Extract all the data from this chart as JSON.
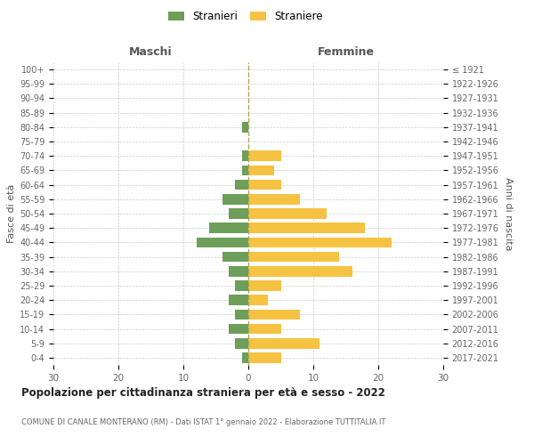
{
  "age_groups": [
    "0-4",
    "5-9",
    "10-14",
    "15-19",
    "20-24",
    "25-29",
    "30-34",
    "35-39",
    "40-44",
    "45-49",
    "50-54",
    "55-59",
    "60-64",
    "65-69",
    "70-74",
    "75-79",
    "80-84",
    "85-89",
    "90-94",
    "95-99",
    "100+"
  ],
  "birth_years": [
    "2017-2021",
    "2012-2016",
    "2007-2011",
    "2002-2006",
    "1997-2001",
    "1992-1996",
    "1987-1991",
    "1982-1986",
    "1977-1981",
    "1972-1976",
    "1967-1971",
    "1962-1966",
    "1957-1961",
    "1952-1956",
    "1947-1951",
    "1942-1946",
    "1937-1941",
    "1932-1936",
    "1927-1931",
    "1922-1926",
    "≤ 1921"
  ],
  "maschi": [
    1,
    2,
    3,
    2,
    3,
    2,
    3,
    4,
    8,
    6,
    3,
    4,
    2,
    1,
    1,
    0,
    1,
    0,
    0,
    0,
    0
  ],
  "femmine": [
    5,
    11,
    5,
    8,
    3,
    5,
    16,
    14,
    22,
    18,
    12,
    8,
    5,
    4,
    5,
    0,
    0,
    0,
    0,
    0,
    0
  ],
  "maschi_color": "#6d9e5a",
  "femmine_color": "#f5c242",
  "title": "Popolazione per cittadinanza straniera per età e sesso - 2022",
  "subtitle": "COMUNE DI CANALE MONTERANO (RM) - Dati ISTAT 1° gennaio 2022 - Elaborazione TUTTITALIA.IT",
  "legend_maschi": "Stranieri",
  "legend_femmine": "Straniere",
  "ylabel_left": "Fasce di età",
  "ylabel_right": "Anni di nascita",
  "xlabel_maschi": "Maschi",
  "xlabel_femmine": "Femmine",
  "xlim": 30,
  "background_color": "#ffffff",
  "grid_color": "#cccccc"
}
